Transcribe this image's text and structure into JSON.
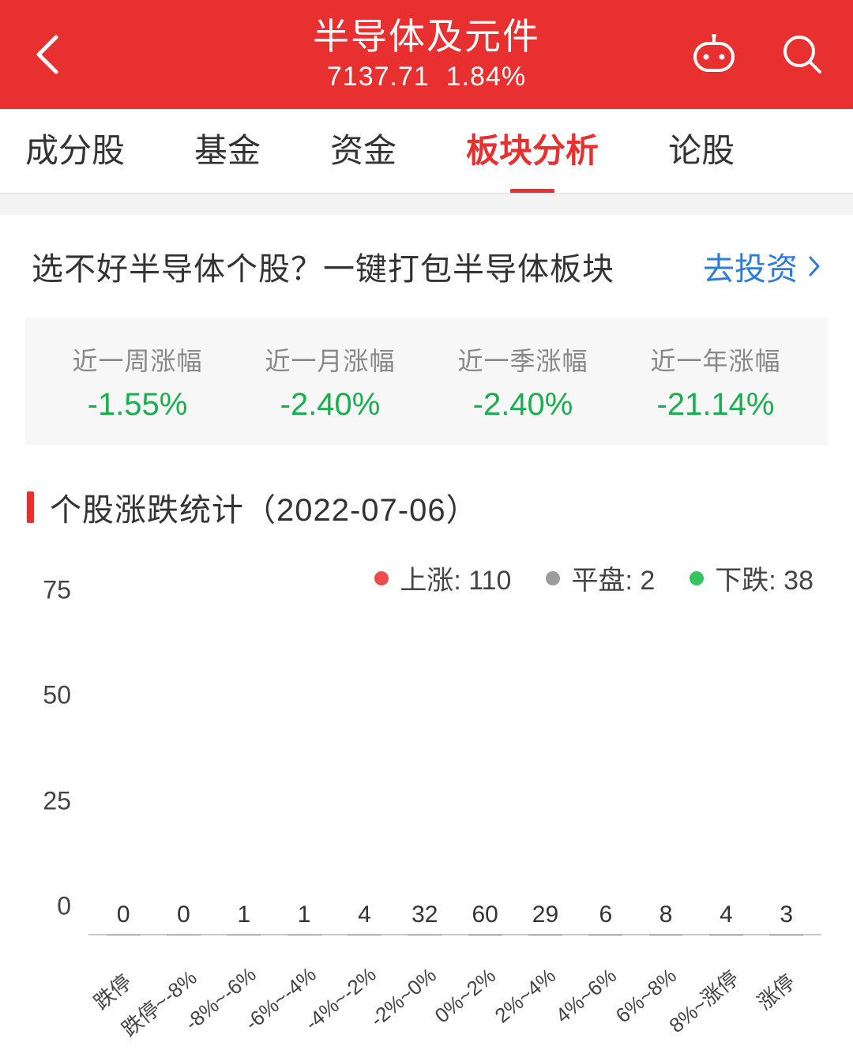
{
  "colors": {
    "brand_red": "#e93030",
    "up_red": "#ef4b4b",
    "down_green": "#37c360",
    "flat_grey": "#9c9c9c",
    "value_green": "#18b04f",
    "link_blue": "#2a7ddc",
    "grey_bg": "#f7f7f7",
    "text": "#333333",
    "muted": "#888888",
    "axis": "#c9c9c9"
  },
  "header": {
    "title": "半导体及元件",
    "price": "7137.71",
    "change_pct": "1.84%"
  },
  "tabs": {
    "items": [
      "成分股",
      "基金",
      "资金",
      "板块分析",
      "论股"
    ],
    "active_index": 3
  },
  "promo": {
    "text": "选不好半导体个股？一键打包半导体板块",
    "link_label": "去投资"
  },
  "period_stats": [
    {
      "label": "近一周涨幅",
      "value": "-1.55%"
    },
    {
      "label": "近一月涨幅",
      "value": "-2.40%"
    },
    {
      "label": "近一季涨幅",
      "value": "-2.40%"
    },
    {
      "label": "近一年涨幅",
      "value": "-21.14%"
    }
  ],
  "section_title": "个股涨跌统计（2022-07-06）",
  "legend": {
    "up": {
      "label": "上涨",
      "count": 110
    },
    "flat": {
      "label": "平盘",
      "count": 2
    },
    "down": {
      "label": "下跌",
      "count": 38
    }
  },
  "chart": {
    "type": "bar",
    "y": {
      "ticks": [
        0,
        25,
        50,
        75
      ],
      "max": 75
    },
    "bars": [
      {
        "label": "跌停",
        "value": 0,
        "series": "down"
      },
      {
        "label": "跌停~-8%",
        "value": 0,
        "series": "down"
      },
      {
        "label": "-8%~-6%",
        "value": 1,
        "series": "down"
      },
      {
        "label": "-6%~-4%",
        "value": 1,
        "series": "down"
      },
      {
        "label": "-4%~-2%",
        "value": 4,
        "series": "down"
      },
      {
        "label": "-2%~0%",
        "value": 32,
        "series": "down"
      },
      {
        "label": "0%~2%",
        "value": 60,
        "series": "up"
      },
      {
        "label": "2%~4%",
        "value": 29,
        "series": "up"
      },
      {
        "label": "4%~6%",
        "value": 6,
        "series": "up"
      },
      {
        "label": "6%~8%",
        "value": 8,
        "series": "up"
      },
      {
        "label": "8%~涨停",
        "value": 4,
        "series": "up"
      },
      {
        "label": "涨停",
        "value": 3,
        "series": "up"
      }
    ],
    "bar_width_pct": 56,
    "label_fontsize": 26,
    "value_fontsize": 30,
    "ytick_fontsize": 32
  }
}
